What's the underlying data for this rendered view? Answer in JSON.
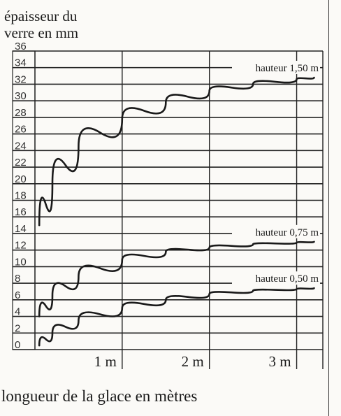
{
  "chart_data": {
    "type": "line",
    "ylabel_lines": [
      "épaisseur du",
      "verre en mm"
    ],
    "xlabel": "longueur de la glace en mètres",
    "y_ticks": [
      "0",
      "2",
      "4",
      "6",
      "8",
      "10",
      "12",
      "14",
      "16",
      "18",
      "20",
      "22",
      "24",
      "26",
      "28",
      "30",
      "32",
      "34",
      "36"
    ],
    "x_ticks": [
      "1 m",
      "2 m",
      "3 m"
    ],
    "xlim": [
      0,
      3.3
    ],
    "ylim": [
      0,
      36
    ],
    "grid": true,
    "series": [
      {
        "name": "hauteur 1,50 m",
        "x": [
          0.05,
          0.2,
          0.5,
          1.0,
          1.5,
          2.0,
          2.5,
          3.0,
          3.2
        ],
        "y": [
          15,
          20,
          24.5,
          27.8,
          29.8,
          31.2,
          32.0,
          32.6,
          32.8
        ]
      },
      {
        "name": "hauteur 0,75 m",
        "x": [
          0.05,
          0.2,
          0.5,
          1.0,
          1.5,
          2.0,
          2.5,
          3.0,
          3.2
        ],
        "y": [
          4,
          6.5,
          8.8,
          10.8,
          11.8,
          12.3,
          12.7,
          12.9,
          13.0
        ]
      },
      {
        "name": "hauteur 0,50 m",
        "x": [
          0.05,
          0.2,
          0.5,
          1.0,
          1.5,
          2.0,
          2.5,
          3.0,
          3.2
        ],
        "y": [
          0.5,
          2.0,
          3.5,
          5.0,
          6.0,
          6.7,
          7.1,
          7.3,
          7.4
        ]
      }
    ]
  }
}
